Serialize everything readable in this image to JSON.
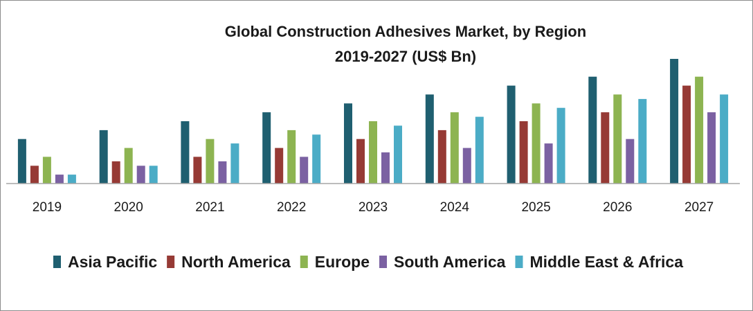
{
  "chart_data": {
    "type": "bar",
    "title": "Global Construction Adhesives Market, by Region",
    "subtitle": "2019-2027 (US$ Bn)",
    "xlabel": "",
    "ylabel": "",
    "ylim": [
      0,
      14
    ],
    "grid": false,
    "legend_position": "bottom",
    "categories": [
      "2019",
      "2020",
      "2021",
      "2022",
      "2023",
      "2024",
      "2025",
      "2026",
      "2027"
    ],
    "series": [
      {
        "name": "Asia Pacific",
        "color": "#1f5f70",
        "values": [
          5.0,
          6.0,
          7.0,
          8.0,
          9.0,
          10.0,
          11.0,
          12.0,
          14.0
        ]
      },
      {
        "name": "North America",
        "color": "#963a35",
        "values": [
          2.0,
          2.5,
          3.0,
          4.0,
          5.0,
          6.0,
          7.0,
          8.0,
          11.0
        ]
      },
      {
        "name": "Europe",
        "color": "#8db451",
        "values": [
          3.0,
          4.0,
          5.0,
          6.0,
          7.0,
          8.0,
          9.0,
          10.0,
          12.0
        ]
      },
      {
        "name": "South America",
        "color": "#7b61a2",
        "values": [
          1.0,
          2.0,
          2.5,
          3.0,
          3.5,
          4.0,
          4.5,
          5.0,
          8.0
        ]
      },
      {
        "name": "Middle East & Africa",
        "color": "#4bacc6",
        "values": [
          1.0,
          2.0,
          4.5,
          5.5,
          6.5,
          7.5,
          8.5,
          9.5,
          10.0
        ]
      }
    ]
  }
}
